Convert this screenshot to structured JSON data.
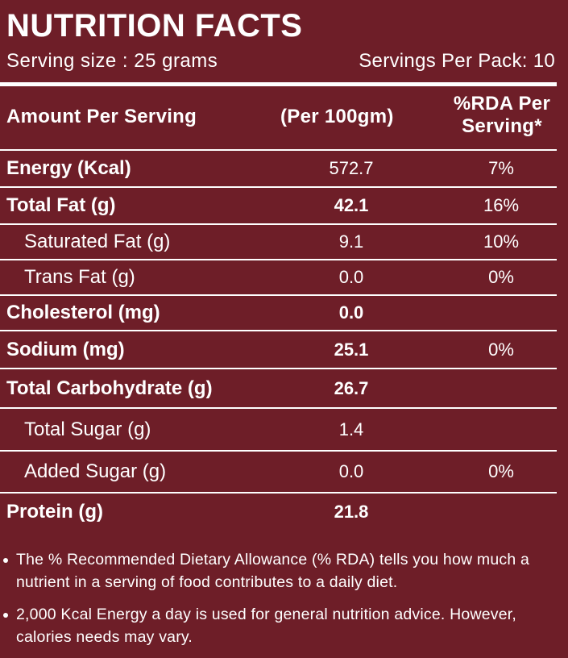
{
  "title": "NUTRITION FACTS",
  "serving": {
    "size": "Serving size : 25 grams",
    "per_pack": "Servings Per Pack: 10"
  },
  "table": {
    "headers": {
      "amount": "Amount Per Serving",
      "per100": "(Per 100gm)",
      "rda_line1": "%RDA Per",
      "rda_line2": "Serving*"
    },
    "rows": [
      {
        "label": "Energy (Kcal)",
        "per100": "572.7",
        "rda": "7%"
      },
      {
        "label": "Total Fat (g)",
        "per100": "42.1",
        "rda": "16%"
      },
      {
        "label": "Saturated Fat (g)",
        "per100": "9.1",
        "rda": "10%"
      },
      {
        "label": "Trans Fat (g)",
        "per100": "0.0",
        "rda": "0%"
      },
      {
        "label": "Cholesterol (mg)",
        "per100": "0.0",
        "rda": ""
      },
      {
        "label": "Sodium  (mg)",
        "per100": "25.1",
        "rda": "0%"
      },
      {
        "label": "Total Carbohydrate (g)",
        "per100": "26.7",
        "rda": ""
      },
      {
        "label": "Total Sugar (g)",
        "per100": "1.4",
        "rda": ""
      },
      {
        "label": "Added Sugar (g)",
        "per100": "0.0",
        "rda": "0%"
      },
      {
        "label": "Protein (g)",
        "per100": "21.8",
        "rda": ""
      }
    ]
  },
  "notes": [
    "The % Recommended Dietary Allowance (% RDA) tells you how much a nutrient in a serving of food contributes to a daily diet.",
    "2,000 Kcal Energy a day is used for general nutrition advice. However, calories needs may vary."
  ]
}
